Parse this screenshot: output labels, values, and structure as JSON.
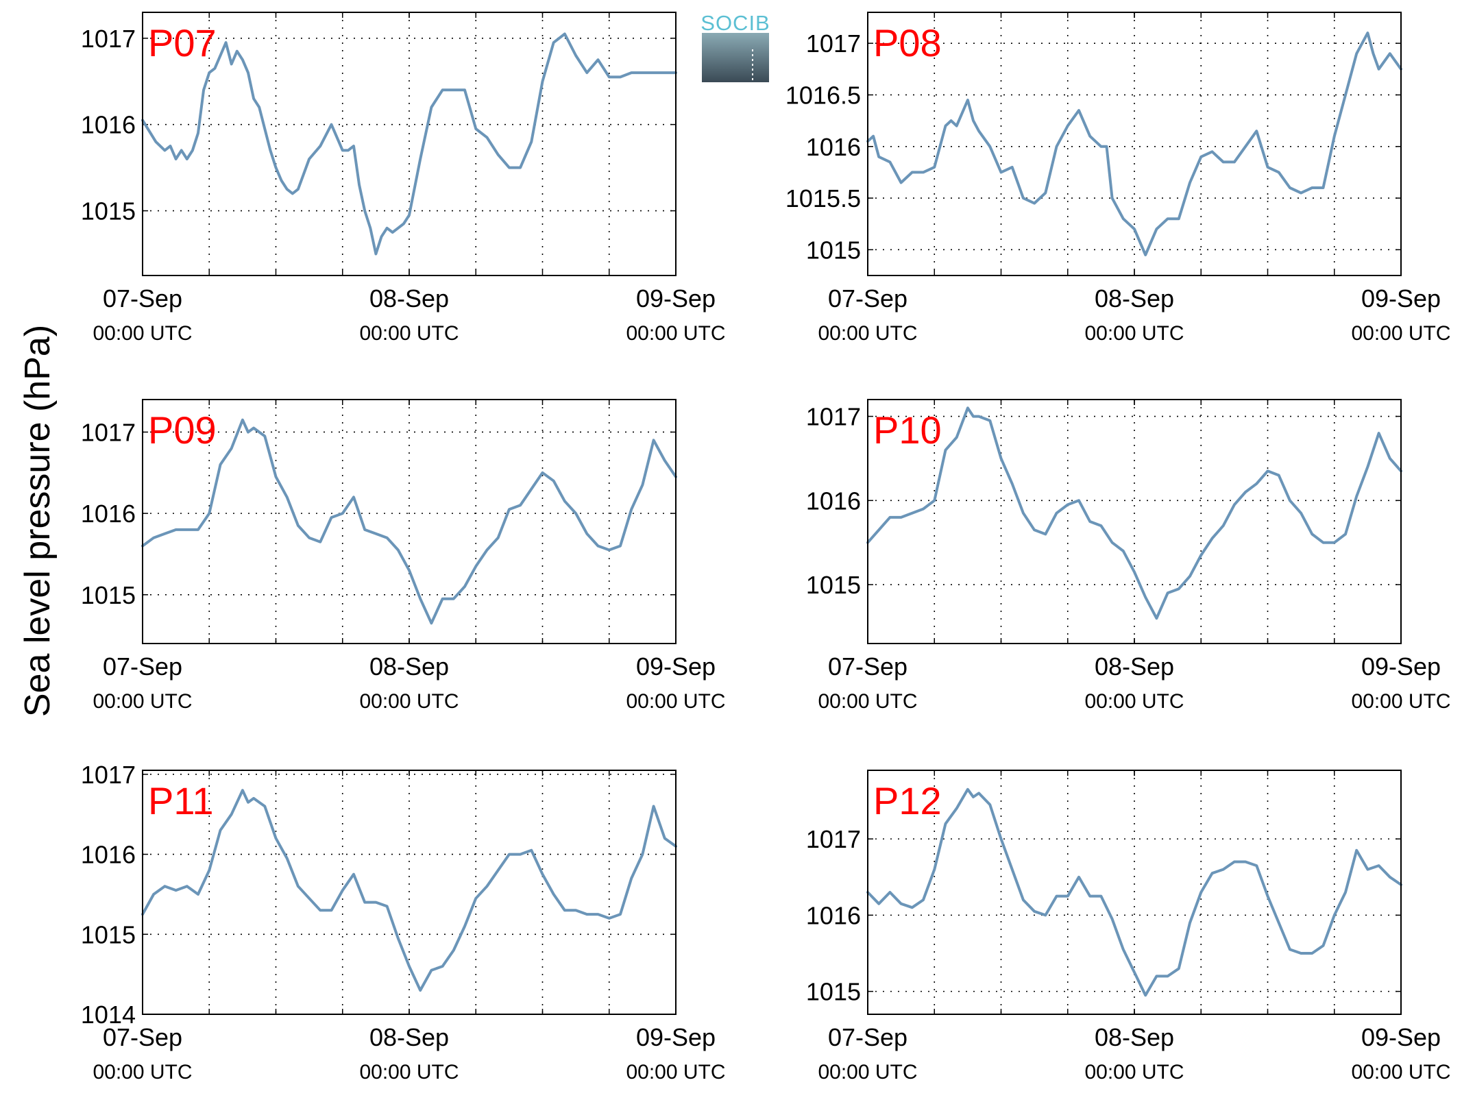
{
  "figure": {
    "ylabel": "Sea level pressure (hPa)",
    "logo_text": "SOCIB"
  },
  "style": {
    "line_color": "#6b95b8",
    "panel_label_color": "#ff0000",
    "logo_text_color": "#5bbfd3",
    "logo_top_color": "#8aaab4",
    "logo_bottom_color": "#3a4a55"
  },
  "chart_data": [
    {
      "type": "line",
      "title": "P07",
      "xlim": [
        0,
        48
      ],
      "ylim": [
        1014.25,
        1017.3
      ],
      "yticks": [
        1015,
        1016,
        1017
      ],
      "ytick_labels": [
        "1015",
        "1016",
        "1017"
      ],
      "xticks": [
        0,
        24,
        48
      ],
      "xtick_labels": [
        "07-Sep",
        "08-Sep",
        "09-Sep"
      ],
      "xtick_sublabels": [
        "00:00 UTC",
        "00:00 UTC",
        "00:00 UTC"
      ],
      "x_minor_grid": [
        6,
        12,
        18,
        30,
        36,
        42
      ],
      "grid": true,
      "x": [
        0,
        1.2,
        2,
        2.5,
        3,
        3.5,
        4,
        4.5,
        5,
        5.5,
        6,
        6.5,
        7,
        7.5,
        8,
        8.5,
        9,
        9.5,
        10,
        10.5,
        11,
        11.5,
        12,
        12.5,
        13,
        13.5,
        14,
        15,
        16,
        17,
        18,
        18.5,
        19,
        19.5,
        20,
        20.5,
        21,
        21.5,
        22,
        22.5,
        23,
        23.5,
        24,
        25,
        26,
        27,
        28,
        29,
        30,
        31,
        32,
        33,
        34,
        35,
        36,
        37,
        38,
        39,
        40,
        41,
        42,
        43,
        44,
        44.5,
        45,
        46,
        47,
        48
      ],
      "y": [
        1016.05,
        1015.8,
        1015.7,
        1015.75,
        1015.6,
        1015.7,
        1015.6,
        1015.7,
        1015.9,
        1016.4,
        1016.6,
        1016.65,
        1016.8,
        1016.95,
        1016.7,
        1016.85,
        1016.75,
        1016.6,
        1016.3,
        1016.2,
        1015.95,
        1015.7,
        1015.5,
        1015.35,
        1015.25,
        1015.2,
        1015.25,
        1015.6,
        1015.75,
        1016.0,
        1015.7,
        1015.7,
        1015.75,
        1015.3,
        1015.0,
        1014.8,
        1014.5,
        1014.7,
        1014.8,
        1014.75,
        1014.8,
        1014.85,
        1014.95,
        1015.6,
        1016.2,
        1016.4,
        1016.4,
        1016.4,
        1015.95,
        1015.85,
        1015.65,
        1015.5,
        1015.5,
        1015.8,
        1016.5,
        1016.95,
        1017.05,
        1016.8,
        1016.6,
        1016.75,
        1016.55,
        1016.55,
        1016.6,
        1016.6,
        1016.6,
        1016.6,
        1016.6,
        1016.6
      ]
    },
    {
      "type": "line",
      "title": "P08",
      "xlim": [
        0,
        48
      ],
      "ylim": [
        1014.75,
        1017.3
      ],
      "yticks": [
        1015,
        1015.5,
        1016,
        1016.5,
        1017
      ],
      "ytick_labels": [
        "1015",
        "1015.5",
        "1016",
        "1016.5",
        "1017"
      ],
      "xticks": [
        0,
        24,
        48
      ],
      "xtick_labels": [
        "07-Sep",
        "08-Sep",
        "09-Sep"
      ],
      "xtick_sublabels": [
        "00:00 UTC",
        "00:00 UTC",
        "00:00 UTC"
      ],
      "x_minor_grid": [
        6,
        12,
        18,
        30,
        36,
        42
      ],
      "grid": true,
      "x": [
        0,
        0.5,
        1,
        2,
        3,
        4,
        5,
        6,
        7,
        7.5,
        8,
        9,
        9.5,
        10,
        11,
        12,
        13,
        14,
        15,
        16,
        17,
        18,
        19,
        20,
        21,
        21.5,
        22,
        23,
        24,
        25,
        26,
        27,
        28,
        29,
        30,
        31,
        32,
        33,
        34,
        35,
        36,
        37,
        38,
        39,
        40,
        41,
        42,
        43,
        44,
        45,
        45.5,
        46,
        47,
        48
      ],
      "y": [
        1016.05,
        1016.1,
        1015.9,
        1015.85,
        1015.65,
        1015.75,
        1015.75,
        1015.8,
        1016.2,
        1016.25,
        1016.2,
        1016.45,
        1016.25,
        1016.15,
        1016.0,
        1015.75,
        1015.8,
        1015.5,
        1015.45,
        1015.55,
        1016.0,
        1016.2,
        1016.35,
        1016.1,
        1016.0,
        1016.0,
        1015.5,
        1015.3,
        1015.2,
        1014.95,
        1015.2,
        1015.3,
        1015.3,
        1015.65,
        1015.9,
        1015.95,
        1015.85,
        1015.85,
        1016.0,
        1016.15,
        1015.8,
        1015.75,
        1015.6,
        1015.55,
        1015.6,
        1015.6,
        1016.1,
        1016.5,
        1016.9,
        1017.1,
        1016.9,
        1016.75,
        1016.9,
        1016.75
      ]
    },
    {
      "type": "line",
      "title": "P09",
      "xlim": [
        0,
        48
      ],
      "ylim": [
        1014.4,
        1017.4
      ],
      "yticks": [
        1015,
        1016,
        1017
      ],
      "ytick_labels": [
        "1015",
        "1016",
        "1017"
      ],
      "xticks": [
        0,
        24,
        48
      ],
      "xtick_labels": [
        "07-Sep",
        "08-Sep",
        "09-Sep"
      ],
      "xtick_sublabels": [
        "00:00 UTC",
        "00:00 UTC",
        "00:00 UTC"
      ],
      "x_minor_grid": [
        6,
        12,
        18,
        30,
        36,
        42
      ],
      "grid": true,
      "x": [
        0,
        1,
        2,
        3,
        4,
        5,
        6,
        7,
        8,
        9,
        9.5,
        10,
        11,
        12,
        13,
        14,
        15,
        16,
        17,
        18,
        19,
        20,
        21,
        22,
        23,
        24,
        25,
        26,
        27,
        28,
        29,
        30,
        31,
        32,
        33,
        34,
        35,
        36,
        37,
        38,
        39,
        40,
        41,
        42,
        43,
        44,
        45,
        46,
        47,
        48
      ],
      "y": [
        1015.6,
        1015.7,
        1015.75,
        1015.8,
        1015.8,
        1015.8,
        1016.0,
        1016.6,
        1016.8,
        1017.15,
        1017.0,
        1017.05,
        1016.95,
        1016.45,
        1016.2,
        1015.85,
        1015.7,
        1015.65,
        1015.95,
        1016.0,
        1016.2,
        1015.8,
        1015.75,
        1015.7,
        1015.55,
        1015.3,
        1014.95,
        1014.65,
        1014.95,
        1014.95,
        1015.1,
        1015.35,
        1015.55,
        1015.7,
        1016.05,
        1016.1,
        1016.3,
        1016.5,
        1016.4,
        1016.15,
        1016.0,
        1015.75,
        1015.6,
        1015.55,
        1015.6,
        1016.05,
        1016.35,
        1016.9,
        1016.65,
        1016.45
      ]
    },
    {
      "type": "line",
      "title": "P10",
      "xlim": [
        0,
        48
      ],
      "ylim": [
        1014.3,
        1017.2
      ],
      "yticks": [
        1015,
        1016,
        1017
      ],
      "ytick_labels": [
        "1015",
        "1016",
        "1017"
      ],
      "xticks": [
        0,
        24,
        48
      ],
      "xtick_labels": [
        "07-Sep",
        "08-Sep",
        "09-Sep"
      ],
      "xtick_sublabels": [
        "00:00 UTC",
        "00:00 UTC",
        "00:00 UTC"
      ],
      "x_minor_grid": [
        6,
        12,
        18,
        30,
        36,
        42
      ],
      "grid": true,
      "x": [
        0,
        1,
        2,
        3,
        4,
        5,
        6,
        7,
        8,
        9,
        9.5,
        10,
        11,
        12,
        13,
        14,
        15,
        16,
        17,
        18,
        19,
        20,
        21,
        22,
        23,
        24,
        25,
        26,
        27,
        28,
        29,
        30,
        31,
        32,
        33,
        34,
        35,
        36,
        37,
        38,
        39,
        40,
        41,
        42,
        43,
        44,
        45,
        46,
        47,
        48
      ],
      "y": [
        1015.5,
        1015.65,
        1015.8,
        1015.8,
        1015.85,
        1015.9,
        1016.0,
        1016.6,
        1016.75,
        1017.1,
        1017.0,
        1017.0,
        1016.95,
        1016.5,
        1016.2,
        1015.85,
        1015.65,
        1015.6,
        1015.85,
        1015.95,
        1016.0,
        1015.75,
        1015.7,
        1015.5,
        1015.4,
        1015.15,
        1014.85,
        1014.6,
        1014.9,
        1014.95,
        1015.1,
        1015.35,
        1015.55,
        1015.7,
        1015.95,
        1016.1,
        1016.2,
        1016.35,
        1016.3,
        1016.0,
        1015.85,
        1015.6,
        1015.5,
        1015.5,
        1015.6,
        1016.05,
        1016.4,
        1016.8,
        1016.5,
        1016.35
      ]
    },
    {
      "type": "line",
      "title": "P11",
      "xlim": [
        0,
        48
      ],
      "ylim": [
        1014,
        1017.05
      ],
      "yticks": [
        1014,
        1015,
        1016,
        1017
      ],
      "ytick_labels": [
        "1014",
        "1015",
        "1016",
        "1017"
      ],
      "xticks": [
        0,
        24,
        48
      ],
      "xtick_labels": [
        "07-Sep",
        "08-Sep",
        "09-Sep"
      ],
      "xtick_sublabels": [
        "00:00 UTC",
        "00:00 UTC",
        "00:00 UTC"
      ],
      "x_minor_grid": [
        6,
        12,
        18,
        30,
        36,
        42
      ],
      "grid": true,
      "x": [
        0,
        1,
        2,
        3,
        4,
        5,
        6,
        7,
        8,
        9,
        9.5,
        10,
        11,
        12,
        13,
        14,
        15,
        16,
        17,
        18,
        19,
        20,
        21,
        22,
        23,
        24,
        25,
        26,
        27,
        28,
        29,
        30,
        31,
        32,
        33,
        34,
        35,
        36,
        37,
        38,
        39,
        40,
        41,
        42,
        43,
        44,
        45,
        46,
        47,
        48
      ],
      "y": [
        1015.25,
        1015.5,
        1015.6,
        1015.55,
        1015.6,
        1015.5,
        1015.8,
        1016.3,
        1016.5,
        1016.8,
        1016.65,
        1016.7,
        1016.6,
        1016.2,
        1015.95,
        1015.6,
        1015.45,
        1015.3,
        1015.3,
        1015.55,
        1015.75,
        1015.4,
        1015.4,
        1015.35,
        1014.95,
        1014.6,
        1014.3,
        1014.55,
        1014.6,
        1014.8,
        1015.1,
        1015.45,
        1015.6,
        1015.8,
        1016.0,
        1016.0,
        1016.05,
        1015.75,
        1015.5,
        1015.3,
        1015.3,
        1015.25,
        1015.25,
        1015.2,
        1015.25,
        1015.7,
        1016.0,
        1016.6,
        1016.2,
        1016.1
      ]
    },
    {
      "type": "line",
      "title": "P12",
      "xlim": [
        0,
        48
      ],
      "ylim": [
        1014.7,
        1017.9
      ],
      "yticks": [
        1015,
        1016,
        1017
      ],
      "ytick_labels": [
        "1015",
        "1016",
        "1017"
      ],
      "xticks": [
        0,
        24,
        48
      ],
      "xtick_labels": [
        "07-Sep",
        "08-Sep",
        "09-Sep"
      ],
      "xtick_sublabels": [
        "00:00 UTC",
        "00:00 UTC",
        "00:00 UTC"
      ],
      "x_minor_grid": [
        6,
        12,
        18,
        30,
        36,
        42
      ],
      "grid": true,
      "x": [
        0,
        1,
        2,
        3,
        4,
        5,
        6,
        7,
        8,
        9,
        9.5,
        10,
        11,
        12,
        13,
        14,
        15,
        16,
        17,
        18,
        19,
        20,
        21,
        22,
        23,
        24,
        25,
        26,
        27,
        28,
        29,
        30,
        31,
        32,
        33,
        34,
        35,
        36,
        37,
        38,
        39,
        40,
        41,
        42,
        43,
        44,
        45,
        46,
        47,
        48
      ],
      "y": [
        1016.3,
        1016.15,
        1016.3,
        1016.15,
        1016.1,
        1016.2,
        1016.6,
        1017.2,
        1017.4,
        1017.65,
        1017.55,
        1017.6,
        1017.45,
        1017.0,
        1016.6,
        1016.2,
        1016.05,
        1016.0,
        1016.25,
        1016.25,
        1016.5,
        1016.25,
        1016.25,
        1015.95,
        1015.55,
        1015.25,
        1014.95,
        1015.2,
        1015.2,
        1015.3,
        1015.9,
        1016.3,
        1016.55,
        1016.6,
        1016.7,
        1016.7,
        1016.65,
        1016.25,
        1015.9,
        1015.55,
        1015.5,
        1015.5,
        1015.6,
        1016.0,
        1016.3,
        1016.85,
        1016.6,
        1016.65,
        1016.5,
        1016.4
      ]
    }
  ]
}
